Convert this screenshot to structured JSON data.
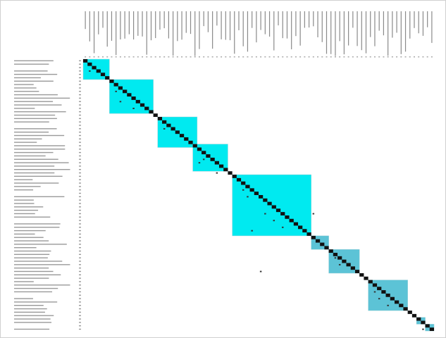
{
  "matrix": {
    "size": 80,
    "blocks": [
      {
        "start": 0,
        "end": 6,
        "color": "#00eaf0"
      },
      {
        "start": 6,
        "end": 16,
        "color": "#00eaf0"
      },
      {
        "start": 17,
        "end": 26,
        "color": "#00eaf0"
      },
      {
        "start": 25,
        "end": 33,
        "color": "#00eaf0"
      },
      {
        "start": 34,
        "end": 52,
        "color": "#00eaf0"
      },
      {
        "start": 52,
        "end": 56,
        "color": "#5cc3d6"
      },
      {
        "start": 56,
        "end": 63,
        "color": "#5cc3d6"
      },
      {
        "start": 65,
        "end": 74,
        "color": "#5cc3d6"
      },
      {
        "start": 76,
        "end": 78,
        "color": "#5cc3d6"
      },
      {
        "start": 78,
        "end": 80,
        "color": "#5cc3d6"
      }
    ],
    "marks": [
      [
        3,
        1
      ],
      [
        9,
        7
      ],
      [
        12,
        8
      ],
      [
        20,
        18
      ],
      [
        29,
        27
      ],
      [
        30,
        26
      ],
      [
        38,
        36
      ],
      [
        40,
        37
      ],
      [
        45,
        41
      ],
      [
        47,
        43
      ],
      [
        49,
        45
      ],
      [
        50,
        38
      ],
      [
        58,
        57
      ],
      [
        60,
        58
      ],
      [
        68,
        66
      ],
      [
        70,
        67
      ],
      [
        72,
        69
      ],
      [
        79,
        77
      ],
      [
        45,
        52
      ],
      [
        62,
        40
      ],
      [
        33,
        30
      ],
      [
        14,
        11
      ]
    ]
  }
}
